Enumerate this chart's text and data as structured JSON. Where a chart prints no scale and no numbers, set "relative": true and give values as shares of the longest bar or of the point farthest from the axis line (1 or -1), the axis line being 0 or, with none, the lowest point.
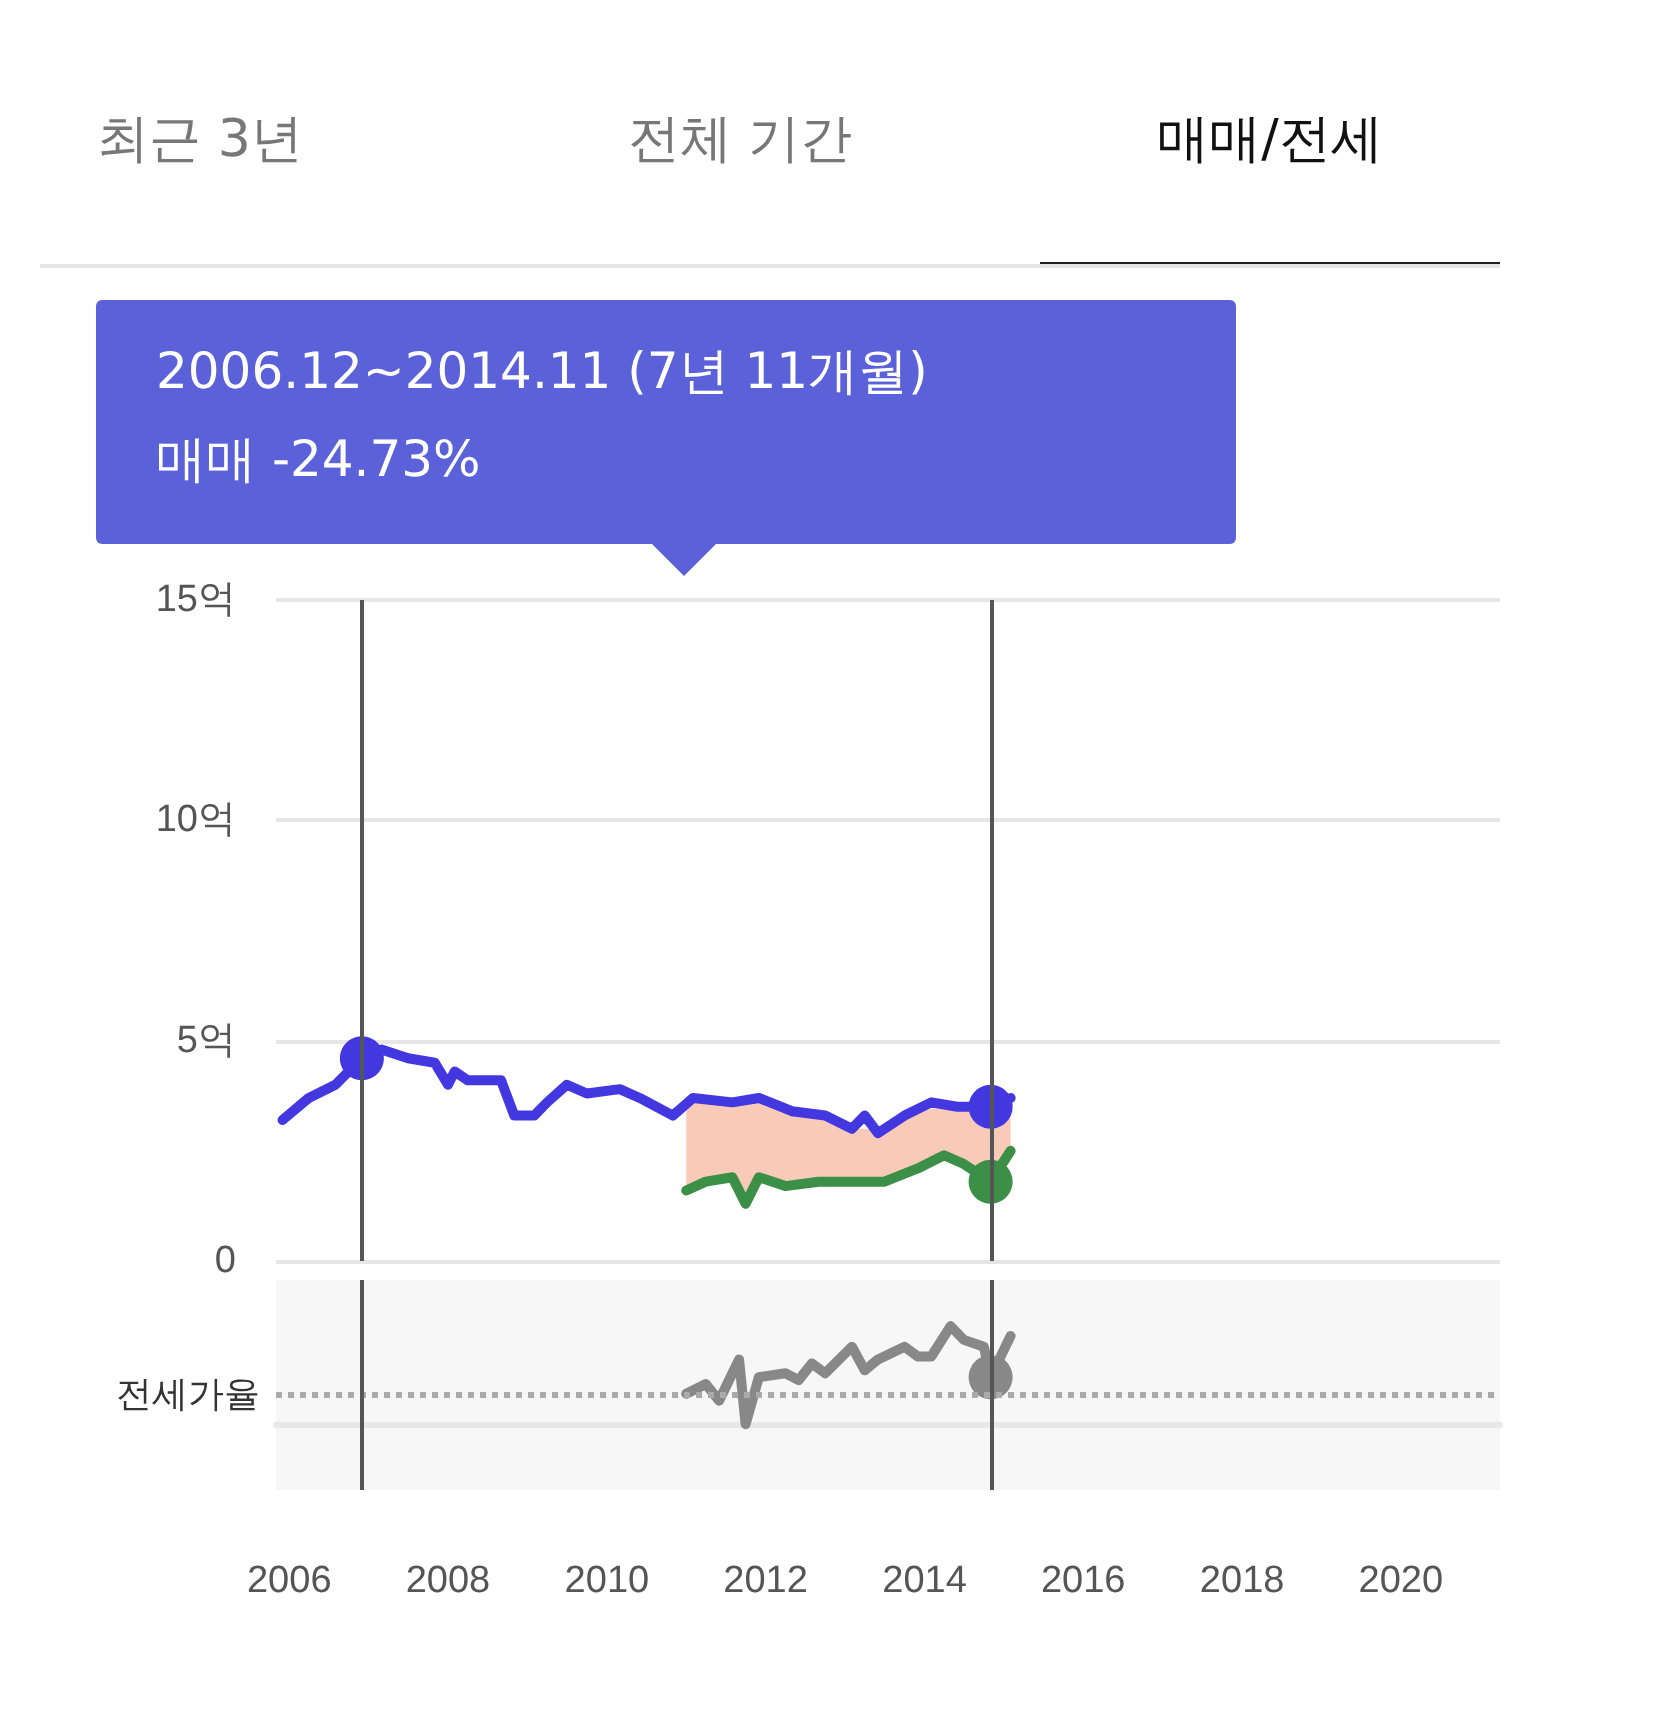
{
  "chart_data": [
    {
      "type": "line",
      "annotations": [
        "최근 3년",
        "전체 기간",
        "매매/전세",
        "2006.12~2014.11 (7년 11개월)",
        "매매 -24.73%"
      ],
      "xlim": [
        "2005-11",
        "2021-04"
      ],
      "ylim": [
        0,
        15
      ],
      "yticks": [
        0,
        {
          "value": 5,
          "label": "5억"
        },
        {
          "value": 10,
          "label": "10억"
        },
        {
          "value": 15,
          "label": "15억"
        }
      ],
      "tick_labels": "y",
      "grid": "y",
      "ref_lines": [
        {
          "axis": "x",
          "value": "2006-12",
          "label": null,
          "color": "#555555"
        },
        {
          "axis": "x",
          "value": "2014-11",
          "label": null,
          "color": "#555555"
        }
      ],
      "series": [
        {
          "color": "#4338e0",
          "x": [
            "2005-12",
            "2006-04",
            "2006-08",
            "2006-12",
            "2007-03",
            "2007-07",
            "2007-11",
            "2008-01",
            "2008-02",
            "2008-04",
            "2008-09",
            "2008-11",
            "2009-02",
            "2009-04",
            "2009-07",
            "2009-10",
            "2010-03",
            "2010-06",
            "2010-11",
            "2011-02",
            "2011-08",
            "2011-12",
            "2012-05",
            "2012-10",
            "2013-02",
            "2013-04",
            "2013-06",
            "2013-10",
            "2014-02",
            "2014-06",
            "2014-11",
            "2015-02"
          ],
          "values": [
            3.2,
            3.7,
            4.0,
            4.6,
            4.8,
            4.6,
            4.5,
            4.0,
            4.3,
            4.1,
            4.1,
            3.3,
            3.3,
            3.6,
            4.0,
            3.8,
            3.9,
            3.7,
            3.3,
            3.7,
            3.6,
            3.7,
            3.4,
            3.3,
            3.0,
            3.3,
            2.9,
            3.3,
            3.6,
            3.5,
            3.5,
            3.7
          ]
        },
        {
          "color": "#3b8f47",
          "x": [
            "2011-01",
            "2011-04",
            "2011-08",
            "2011-10",
            "2011-12",
            "2012-04",
            "2012-09",
            "2013-02",
            "2013-07",
            "2013-12",
            "2014-04",
            "2014-07",
            "2014-11",
            "2015-02"
          ],
          "values": [
            1.6,
            1.8,
            1.9,
            1.3,
            1.9,
            1.7,
            1.8,
            1.8,
            1.8,
            2.1,
            2.4,
            2.2,
            1.8,
            2.5
          ],
          "lower": [
            1.6,
            1.8,
            1.9,
            1.3,
            1.9,
            1.7,
            1.8,
            1.8,
            1.8,
            2.1,
            2.4,
            2.2,
            1.8,
            2.5
          ],
          "upper": [
            3.6,
            3.7,
            3.6,
            3.7,
            3.7,
            3.5,
            3.3,
            3.0,
            3.0,
            3.4,
            3.5,
            3.6,
            3.5,
            3.7
          ]
        }
      ]
    },
    {
      "type": "line",
      "relative": true,
      "xlim": [
        "2005-11",
        "2021-04"
      ],
      "xticks": [
        {
          "value": "2006",
          "label": "2006"
        },
        {
          "value": "2008",
          "label": "2008"
        },
        {
          "value": "2010",
          "label": "2010"
        },
        {
          "value": "2012",
          "label": "2012"
        },
        {
          "value": "2014",
          "label": "2014"
        },
        {
          "value": "2016",
          "label": "2016"
        },
        {
          "value": "2018",
          "label": "2018"
        },
        {
          "value": "2020",
          "label": "2020"
        }
      ],
      "tick_labels": "x",
      "grid": false,
      "ref_lines": [
        {
          "axis": "y",
          "value": 0.31,
          "label": "전세가율",
          "color": "#aaaaaa",
          "line_style": "dotted"
        },
        {
          "axis": "x",
          "value": "2006-12",
          "label": null,
          "color": "#555555"
        },
        {
          "axis": "x",
          "value": "2014-11",
          "label": null,
          "color": "#555555"
        }
      ],
      "series": [
        {
          "color": "#888888",
          "x": [
            "2011-01",
            "2011-04",
            "2011-06",
            "2011-09",
            "2011-10",
            "2011-12",
            "2012-04",
            "2012-06",
            "2012-08",
            "2012-10",
            "2013-02",
            "2013-04",
            "2013-06",
            "2013-10",
            "2013-12",
            "2014-02",
            "2014-05",
            "2014-07",
            "2014-10",
            "2014-11",
            "2015-02"
          ],
          "values": [
            0.31,
            0.41,
            0.24,
            0.66,
            0,
            0.48,
            0.52,
            0.45,
            0.62,
            0.52,
            0.79,
            0.55,
            0.66,
            0.79,
            0.69,
            0.69,
            1,
            0.86,
            0.79,
            0.48,
            0.9
          ]
        }
      ]
    }
  ]
}
